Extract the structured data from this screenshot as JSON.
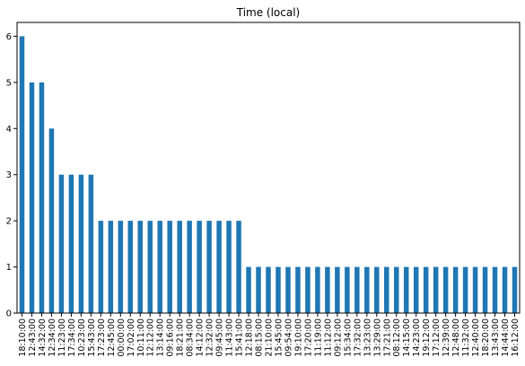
{
  "chart_data": {
    "type": "bar",
    "title": "Time (local)",
    "xlabel": "",
    "ylabel": "",
    "ylim": [
      0,
      6.3
    ],
    "yticks": [
      0,
      1,
      2,
      3,
      4,
      5,
      6
    ],
    "grid": false,
    "legend": "none",
    "bar_color": "#1f77b4",
    "categories": [
      "18:10:00",
      "12:43:00",
      "14:32:00",
      "12:34:00",
      "11:23:00",
      "17:34:00",
      "10:23:00",
      "15:43:00",
      "17:23:00",
      "12:45:00",
      "00:00:00",
      "17:02:00",
      "10:11:00",
      "12:12:00",
      "13:14:00",
      "09:16:00",
      "18:21:00",
      "08:34:00",
      "14:12:00",
      "12:32:00",
      "09:45:00",
      "11:43:00",
      "15:41:00",
      "12:18:00",
      "08:15:00",
      "21:10:00",
      "15:45:00",
      "09:54:00",
      "19:10:00",
      "17:20:00",
      "11:19:00",
      "11:12:00",
      "09:12:00",
      "15:34:00",
      "17:32:00",
      "13:23:00",
      "13:29:00",
      "17:21:00",
      "08:12:00",
      "14:15:00",
      "14:23:00",
      "19:12:00",
      "17:12:00",
      "12:39:00",
      "12:48:00",
      "11:32:00",
      "12:40:00",
      "18:20:00",
      "13:43:00",
      "14:44:00",
      "16:12:00"
    ],
    "values": [
      6,
      5,
      5,
      4,
      3,
      3,
      3,
      3,
      2,
      2,
      2,
      2,
      2,
      2,
      2,
      2,
      2,
      2,
      2,
      2,
      2,
      2,
      2,
      1,
      1,
      1,
      1,
      1,
      1,
      1,
      1,
      1,
      1,
      1,
      1,
      1,
      1,
      1,
      1,
      1,
      1,
      1,
      1,
      1,
      1,
      1,
      1,
      1,
      1,
      1,
      1
    ]
  }
}
